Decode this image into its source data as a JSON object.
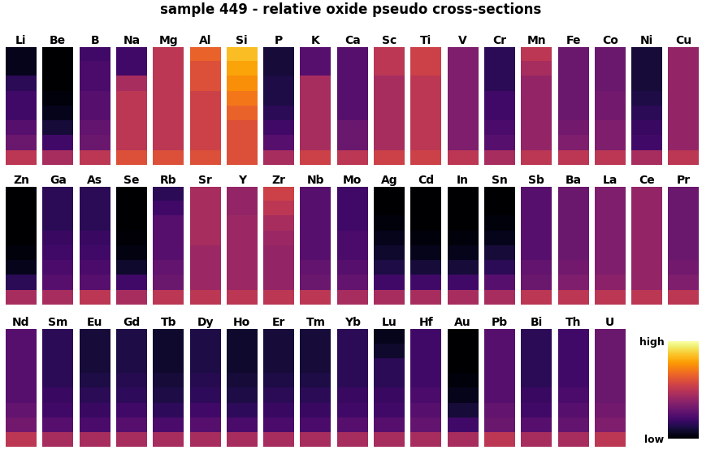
{
  "chart_data": {
    "type": "heatmap_grid",
    "title": "sample 449 - relative oxide pseudo cross-sections",
    "color": "inferno",
    "color_range": [
      0,
      1
    ],
    "colorbar_ticks": [
      {
        "value": 1,
        "label": "high"
      },
      {
        "value": 0,
        "label": "low"
      }
    ],
    "tick_labels": false,
    "panels": [
      {
        "label": "Li",
        "cells": [
          0.05,
          0.05,
          0.15,
          0.2,
          0.2,
          0.25,
          0.3,
          0.5
        ]
      },
      {
        "label": "Be",
        "cells": [
          0.0,
          0.0,
          0.0,
          0.02,
          0.05,
          0.1,
          0.2,
          0.45
        ]
      },
      {
        "label": "B",
        "cells": [
          0.2,
          0.22,
          0.22,
          0.25,
          0.25,
          0.28,
          0.3,
          0.5
        ]
      },
      {
        "label": "Na",
        "cells": [
          0.2,
          0.2,
          0.45,
          0.5,
          0.5,
          0.5,
          0.5,
          0.6
        ]
      },
      {
        "label": "Mg",
        "cells": [
          0.5,
          0.5,
          0.5,
          0.5,
          0.5,
          0.5,
          0.5,
          0.6
        ]
      },
      {
        "label": "Al",
        "cells": [
          0.65,
          0.6,
          0.6,
          0.55,
          0.55,
          0.55,
          0.55,
          0.6
        ]
      },
      {
        "label": "Si",
        "cells": [
          0.85,
          0.8,
          0.75,
          0.7,
          0.65,
          0.6,
          0.6,
          0.6
        ]
      },
      {
        "label": "P",
        "cells": [
          0.1,
          0.1,
          0.12,
          0.12,
          0.15,
          0.2,
          0.25,
          0.45
        ]
      },
      {
        "label": "K",
        "cells": [
          0.25,
          0.25,
          0.45,
          0.45,
          0.45,
          0.45,
          0.45,
          0.55
        ]
      },
      {
        "label": "Ca",
        "cells": [
          0.25,
          0.25,
          0.25,
          0.25,
          0.25,
          0.3,
          0.3,
          0.5
        ]
      },
      {
        "label": "Sc",
        "cells": [
          0.5,
          0.5,
          0.45,
          0.45,
          0.45,
          0.45,
          0.45,
          0.55
        ]
      },
      {
        "label": "Ti",
        "cells": [
          0.55,
          0.55,
          0.5,
          0.5,
          0.5,
          0.5,
          0.5,
          0.55
        ]
      },
      {
        "label": "V",
        "cells": [
          0.35,
          0.35,
          0.35,
          0.35,
          0.35,
          0.35,
          0.35,
          0.5
        ]
      },
      {
        "label": "Cr",
        "cells": [
          0.15,
          0.15,
          0.15,
          0.2,
          0.2,
          0.22,
          0.25,
          0.45
        ]
      },
      {
        "label": "Mn",
        "cells": [
          0.5,
          0.45,
          0.4,
          0.4,
          0.4,
          0.4,
          0.4,
          0.5
        ]
      },
      {
        "label": "Fe",
        "cells": [
          0.3,
          0.3,
          0.3,
          0.3,
          0.3,
          0.32,
          0.35,
          0.5
        ]
      },
      {
        "label": "Co",
        "cells": [
          0.3,
          0.3,
          0.3,
          0.32,
          0.32,
          0.35,
          0.35,
          0.5
        ]
      },
      {
        "label": "Ni",
        "cells": [
          0.1,
          0.1,
          0.1,
          0.12,
          0.15,
          0.18,
          0.2,
          0.45
        ]
      },
      {
        "label": "Cu",
        "cells": [
          0.4,
          0.4,
          0.4,
          0.4,
          0.4,
          0.4,
          0.4,
          0.5
        ]
      },
      {
        "label": "Zn",
        "cells": [
          0.0,
          0.0,
          0.0,
          0.0,
          0.02,
          0.05,
          0.15,
          0.45
        ]
      },
      {
        "label": "Ga",
        "cells": [
          0.15,
          0.15,
          0.15,
          0.18,
          0.2,
          0.22,
          0.25,
          0.45
        ]
      },
      {
        "label": "As",
        "cells": [
          0.15,
          0.15,
          0.15,
          0.18,
          0.2,
          0.22,
          0.25,
          0.5
        ]
      },
      {
        "label": "Se",
        "cells": [
          0.0,
          0.0,
          0.0,
          0.01,
          0.03,
          0.08,
          0.2,
          0.45
        ]
      },
      {
        "label": "Rb",
        "cells": [
          0.15,
          0.2,
          0.25,
          0.25,
          0.25,
          0.28,
          0.3,
          0.5
        ]
      },
      {
        "label": "Sr",
        "cells": [
          0.45,
          0.45,
          0.45,
          0.45,
          0.42,
          0.42,
          0.42,
          0.5
        ]
      },
      {
        "label": "Y",
        "cells": [
          0.4,
          0.4,
          0.42,
          0.42,
          0.42,
          0.42,
          0.42,
          0.5
        ]
      },
      {
        "label": "Zr",
        "cells": [
          0.55,
          0.5,
          0.45,
          0.42,
          0.4,
          0.4,
          0.4,
          0.5
        ]
      },
      {
        "label": "Nb",
        "cells": [
          0.25,
          0.25,
          0.25,
          0.25,
          0.25,
          0.28,
          0.3,
          0.5
        ]
      },
      {
        "label": "Mo",
        "cells": [
          0.2,
          0.2,
          0.2,
          0.22,
          0.22,
          0.25,
          0.28,
          0.45
        ]
      },
      {
        "label": "Ag",
        "cells": [
          0.0,
          0.0,
          0.02,
          0.05,
          0.08,
          0.12,
          0.2,
          0.45
        ]
      },
      {
        "label": "Cd",
        "cells": [
          0.0,
          0.0,
          0.0,
          0.02,
          0.05,
          0.1,
          0.2,
          0.45
        ]
      },
      {
        "label": "In",
        "cells": [
          0.0,
          0.0,
          0.0,
          0.02,
          0.05,
          0.1,
          0.2,
          0.45
        ]
      },
      {
        "label": "Sn",
        "cells": [
          0.0,
          0.0,
          0.02,
          0.05,
          0.1,
          0.15,
          0.25,
          0.45
        ]
      },
      {
        "label": "Sb",
        "cells": [
          0.25,
          0.25,
          0.25,
          0.25,
          0.25,
          0.28,
          0.3,
          0.5
        ]
      },
      {
        "label": "Ba",
        "cells": [
          0.3,
          0.3,
          0.3,
          0.3,
          0.3,
          0.32,
          0.35,
          0.5
        ]
      },
      {
        "label": "La",
        "cells": [
          0.35,
          0.35,
          0.35,
          0.35,
          0.35,
          0.35,
          0.38,
          0.5
        ]
      },
      {
        "label": "Ce",
        "cells": [
          0.4,
          0.4,
          0.4,
          0.4,
          0.4,
          0.4,
          0.4,
          0.5
        ]
      },
      {
        "label": "Pr",
        "cells": [
          0.3,
          0.3,
          0.3,
          0.3,
          0.3,
          0.32,
          0.35,
          0.5
        ]
      },
      {
        "label": "Nd",
        "cells": [
          0.25,
          0.25,
          0.25,
          0.25,
          0.25,
          0.28,
          0.32,
          0.5
        ]
      },
      {
        "label": "Sm",
        "cells": [
          0.15,
          0.15,
          0.15,
          0.15,
          0.18,
          0.2,
          0.25,
          0.45
        ]
      },
      {
        "label": "Eu",
        "cells": [
          0.1,
          0.1,
          0.1,
          0.12,
          0.15,
          0.18,
          0.22,
          0.45
        ]
      },
      {
        "label": "Gd",
        "cells": [
          0.12,
          0.12,
          0.12,
          0.14,
          0.16,
          0.2,
          0.25,
          0.45
        ]
      },
      {
        "label": "Tb",
        "cells": [
          0.08,
          0.08,
          0.08,
          0.1,
          0.12,
          0.16,
          0.22,
          0.45
        ]
      },
      {
        "label": "Dy",
        "cells": [
          0.12,
          0.12,
          0.12,
          0.14,
          0.16,
          0.2,
          0.25,
          0.45
        ]
      },
      {
        "label": "Ho",
        "cells": [
          0.08,
          0.08,
          0.08,
          0.1,
          0.12,
          0.16,
          0.22,
          0.45
        ]
      },
      {
        "label": "Er",
        "cells": [
          0.1,
          0.1,
          0.1,
          0.12,
          0.15,
          0.18,
          0.22,
          0.45
        ]
      },
      {
        "label": "Tm",
        "cells": [
          0.1,
          0.1,
          0.1,
          0.12,
          0.15,
          0.18,
          0.22,
          0.45
        ]
      },
      {
        "label": "Yb",
        "cells": [
          0.15,
          0.15,
          0.15,
          0.15,
          0.18,
          0.2,
          0.25,
          0.45
        ]
      },
      {
        "label": "Lu",
        "cells": [
          0.05,
          0.08,
          0.15,
          0.15,
          0.18,
          0.2,
          0.25,
          0.45
        ]
      },
      {
        "label": "Hf",
        "cells": [
          0.2,
          0.2,
          0.2,
          0.2,
          0.22,
          0.25,
          0.28,
          0.45
        ]
      },
      {
        "label": "Au",
        "cells": [
          0.0,
          0.0,
          0.0,
          0.02,
          0.05,
          0.1,
          0.2,
          0.45
        ]
      },
      {
        "label": "Pb",
        "cells": [
          0.25,
          0.25,
          0.25,
          0.25,
          0.25,
          0.28,
          0.3,
          0.5
        ]
      },
      {
        "label": "Bi",
        "cells": [
          0.15,
          0.15,
          0.15,
          0.15,
          0.18,
          0.2,
          0.25,
          0.45
        ]
      },
      {
        "label": "Th",
        "cells": [
          0.2,
          0.2,
          0.2,
          0.2,
          0.22,
          0.25,
          0.28,
          0.45
        ]
      },
      {
        "label": "U",
        "cells": [
          0.3,
          0.3,
          0.3,
          0.3,
          0.3,
          0.32,
          0.35,
          0.5
        ]
      }
    ]
  }
}
